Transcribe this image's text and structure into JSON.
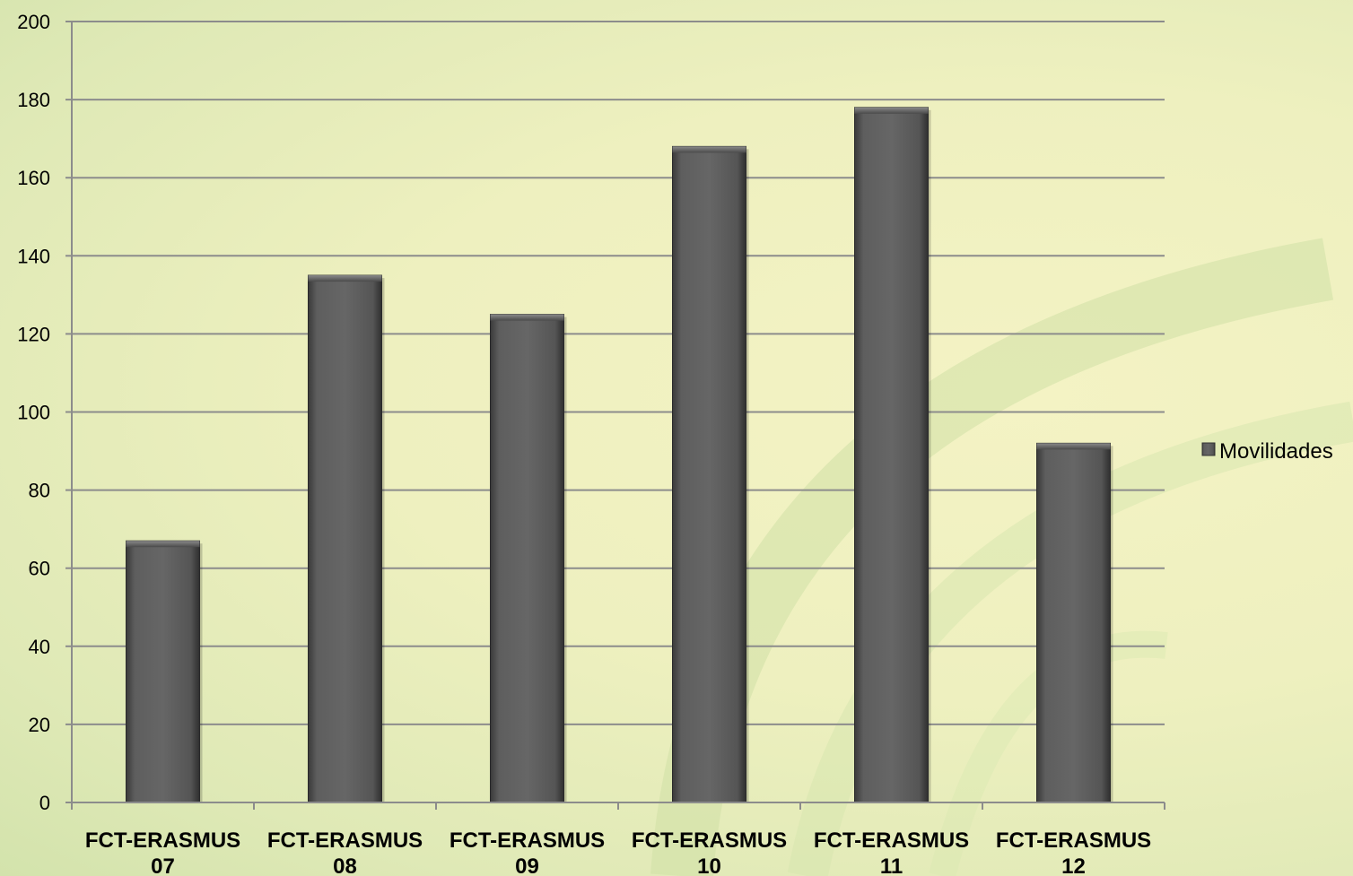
{
  "chart_data": {
    "type": "bar",
    "categories": [
      [
        "FCT-ERASMUS",
        "07"
      ],
      [
        "FCT-ERASMUS",
        "08"
      ],
      [
        "FCT-ERASMUS",
        "09"
      ],
      [
        "FCT-ERASMUS",
        "10"
      ],
      [
        "FCT-ERASMUS",
        "11"
      ],
      [
        "FCT-ERASMUS",
        "12"
      ]
    ],
    "series": [
      {
        "name": "Movilidades",
        "values": [
          67,
          135,
          125,
          168,
          178,
          92
        ],
        "color": "#5a5a5a"
      }
    ],
    "yticks": [
      "0",
      "20",
      "40",
      "60",
      "80",
      "100",
      "120",
      "140",
      "160",
      "180",
      "200"
    ],
    "ylim": [
      0,
      200
    ],
    "grid": true,
    "legend": "right"
  }
}
